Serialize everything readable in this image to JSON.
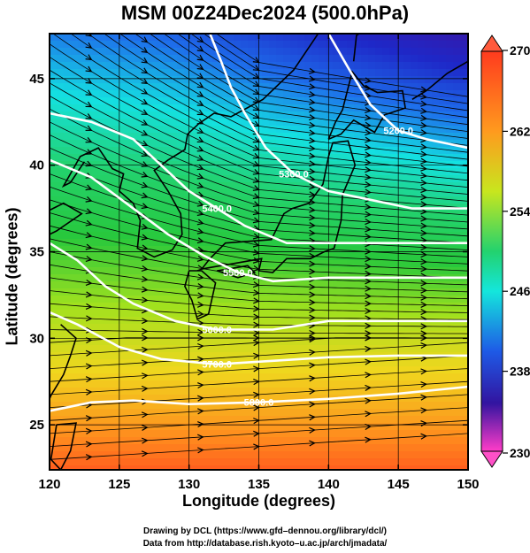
{
  "chart_data": {
    "type": "heatmap",
    "title": "MSM 00Z24Dec2024 (500.0hPa)",
    "xlabel": "Longitude (degrees)",
    "ylabel": "Latitude  (degrees)",
    "xlim": [
      120,
      150
    ],
    "ylim": [
      22.4,
      47.6
    ],
    "x_ticks": [
      120,
      125,
      130,
      135,
      140,
      145,
      150
    ],
    "y_ticks": [
      25,
      30,
      35,
      40,
      45
    ],
    "colorbar": {
      "min": 230,
      "max": 270,
      "ticks": [
        "270",
        "262",
        "254",
        "246",
        "238",
        "230"
      ]
    },
    "contours": [
      {
        "label": "5200.0",
        "points": [
          [
            140,
            47.6
          ],
          [
            141.5,
            45.5
          ],
          [
            143,
            43.5
          ],
          [
            145,
            42
          ],
          [
            147,
            41.5
          ],
          [
            150,
            41
          ]
        ]
      },
      {
        "label": "5300.0",
        "points": [
          [
            131.5,
            47.6
          ],
          [
            132.3,
            46
          ],
          [
            133,
            44.5
          ],
          [
            134,
            43
          ],
          [
            135.5,
            41
          ],
          [
            137.5,
            39.5
          ],
          [
            140,
            38.5
          ],
          [
            143,
            38
          ],
          [
            146,
            37.5
          ],
          [
            150,
            37.5
          ]
        ]
      },
      {
        "label": "5400.0",
        "points": [
          [
            120,
            43
          ],
          [
            123,
            42.5
          ],
          [
            126,
            41.5
          ],
          [
            128,
            40
          ],
          [
            130,
            38.5
          ],
          [
            132,
            37.5
          ],
          [
            134,
            36.5
          ],
          [
            137,
            35.5
          ],
          [
            140,
            35.5
          ],
          [
            145,
            35.5
          ],
          [
            150,
            35.5
          ]
        ]
      },
      {
        "label": "5500.0",
        "points": [
          [
            120,
            40.3
          ],
          [
            123,
            39.3
          ],
          [
            126,
            37.5
          ],
          [
            128.5,
            36
          ],
          [
            131,
            34.8
          ],
          [
            133.5,
            33.8
          ],
          [
            136,
            33.3
          ],
          [
            140,
            33.5
          ],
          [
            145,
            33.5
          ],
          [
            150,
            33.5
          ]
        ]
      },
      {
        "label": "5600.0",
        "points": [
          [
            120,
            35.5
          ],
          [
            122,
            34.5
          ],
          [
            124,
            33
          ],
          [
            126,
            32
          ],
          [
            129,
            31
          ],
          [
            132,
            30.5
          ],
          [
            136,
            30.5
          ],
          [
            140,
            31
          ],
          [
            145,
            31
          ],
          [
            150,
            31
          ]
        ]
      },
      {
        "label": "5700.0",
        "points": [
          [
            120,
            31.5
          ],
          [
            122,
            30.8
          ],
          [
            125,
            29.5
          ],
          [
            128,
            28.8
          ],
          [
            132,
            28.5
          ],
          [
            136,
            28.7
          ],
          [
            140,
            28.9
          ],
          [
            145,
            29
          ],
          [
            150,
            29
          ]
        ]
      },
      {
        "label": "5800.0",
        "points": [
          [
            120,
            25.8
          ],
          [
            123,
            26.3
          ],
          [
            126,
            26.4
          ],
          [
            130,
            26.2
          ],
          [
            135,
            26.3
          ],
          [
            140,
            26.5
          ],
          [
            145,
            26.8
          ],
          [
            150,
            27.2
          ]
        ]
      }
    ]
  },
  "credits": {
    "line1": "Drawing by DCL (https://www.gfd–dennou.org/library/dcl/)",
    "line2": "Data from http://database.rish.kyoto–u.ac.jp/arch/jmadata/"
  }
}
